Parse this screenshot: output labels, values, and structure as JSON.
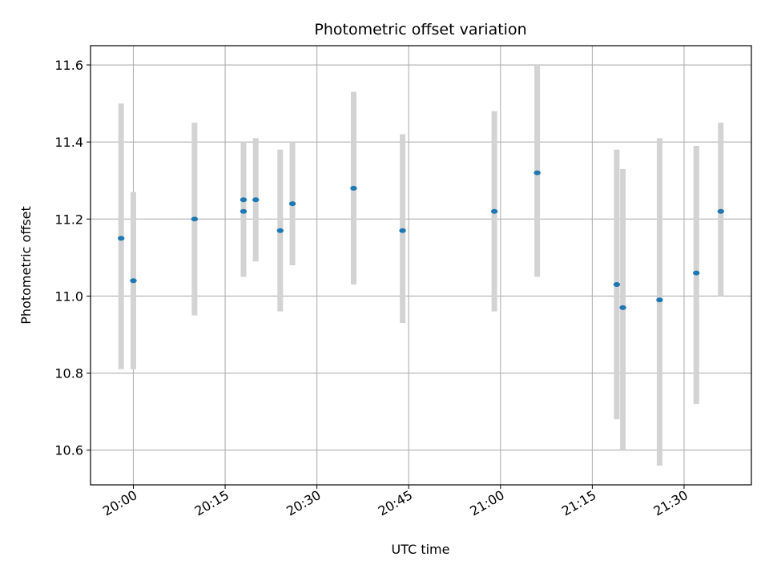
{
  "chart_data": {
    "type": "scatter",
    "title": "Photometric offset variation",
    "xlabel": "UTC time",
    "ylabel": "Photometric offset",
    "x_unit": "UTC HH:MM",
    "xlim": [
      "19:53",
      "21:41"
    ],
    "ylim": [
      10.51,
      11.65
    ],
    "grid": true,
    "x_ticks": [
      "20:00",
      "20:15",
      "20:30",
      "20:45",
      "21:00",
      "21:15",
      "21:30"
    ],
    "y_ticks": [
      10.6,
      10.8,
      11.0,
      11.2,
      11.4,
      11.6
    ],
    "series": [
      {
        "points": [
          {
            "x": "19:58",
            "y": 11.15,
            "ylow": 10.81,
            "yhigh": 11.5
          },
          {
            "x": "20:00",
            "y": 11.04,
            "ylow": 10.81,
            "yhigh": 11.27
          },
          {
            "x": "20:10",
            "y": 11.2,
            "ylow": 10.95,
            "yhigh": 11.45
          },
          {
            "x": "20:18",
            "y": 11.25,
            "ylow": 11.09,
            "yhigh": 11.4
          },
          {
            "x": "20:18",
            "y": 11.22,
            "ylow": 11.05,
            "yhigh": 11.39
          },
          {
            "x": "20:20",
            "y": 11.25,
            "ylow": 11.09,
            "yhigh": 11.41
          },
          {
            "x": "20:24",
            "y": 11.17,
            "ylow": 10.96,
            "yhigh": 11.38
          },
          {
            "x": "20:26",
            "y": 11.24,
            "ylow": 11.08,
            "yhigh": 11.4
          },
          {
            "x": "20:36",
            "y": 11.28,
            "ylow": 11.03,
            "yhigh": 11.53
          },
          {
            "x": "20:44",
            "y": 11.17,
            "ylow": 10.93,
            "yhigh": 11.42
          },
          {
            "x": "20:59",
            "y": 11.22,
            "ylow": 10.96,
            "yhigh": 11.48
          },
          {
            "x": "21:06",
            "y": 11.32,
            "ylow": 11.05,
            "yhigh": 11.6
          },
          {
            "x": "21:19",
            "y": 11.03,
            "ylow": 10.68,
            "yhigh": 11.38
          },
          {
            "x": "21:20",
            "y": 10.97,
            "ylow": 10.6,
            "yhigh": 11.33
          },
          {
            "x": "21:26",
            "y": 10.99,
            "ylow": 10.56,
            "yhigh": 11.41
          },
          {
            "x": "21:32",
            "y": 11.06,
            "ylow": 10.72,
            "yhigh": 11.39
          },
          {
            "x": "21:36",
            "y": 11.22,
            "ylow": 11.0,
            "yhigh": 11.45
          }
        ]
      }
    ],
    "colors": {
      "point": "#1f77b4",
      "errorbar": "#d3d3d3",
      "grid": "#b0b0b0",
      "axes": "#000000"
    }
  }
}
